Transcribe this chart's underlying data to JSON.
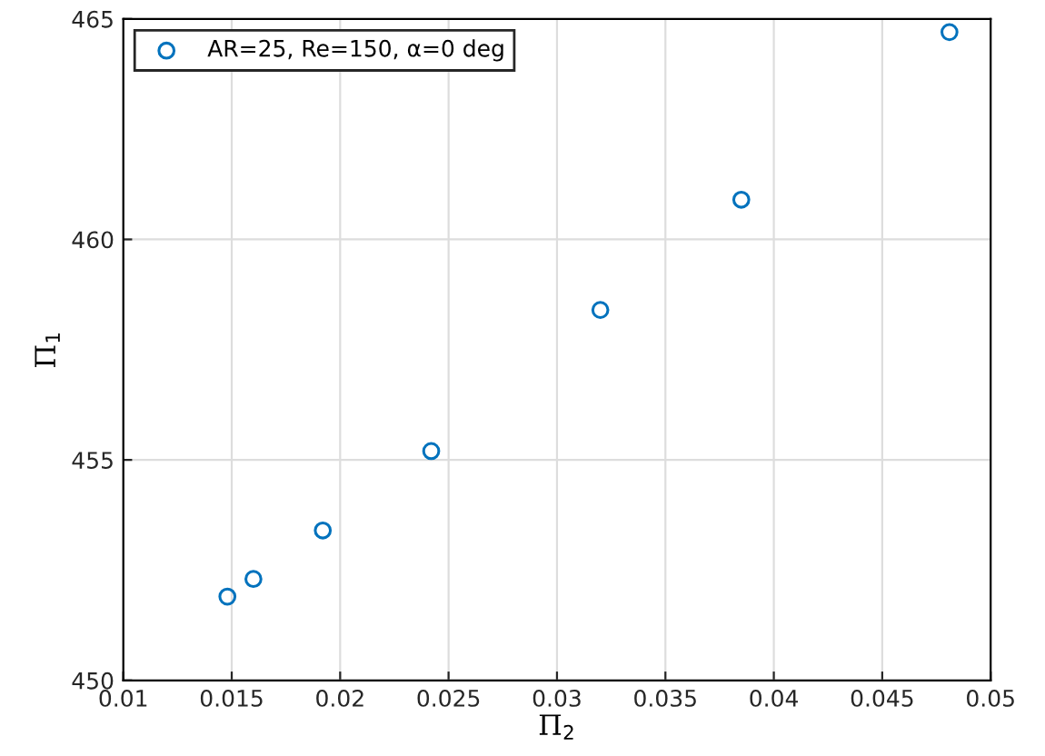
{
  "chart_data": {
    "type": "scatter",
    "xlabel": "Π$_{2}$",
    "ylabel": "Π$_{1}$",
    "x": [
      0.0148,
      0.016,
      0.0192,
      0.0242,
      0.032,
      0.0385,
      0.0481
    ],
    "series": [
      {
        "name": "AR=25, Re=150, α=0 deg",
        "color": "#0072bd",
        "values": [
          451.9,
          452.3,
          453.4,
          455.2,
          458.4,
          460.9,
          464.7
        ]
      }
    ],
    "xlim": [
      0.01,
      0.05
    ],
    "xticks": [
      0.01,
      0.015,
      0.02,
      0.025,
      0.03,
      0.035,
      0.04,
      0.045,
      0.05
    ],
    "ylim": [
      450,
      465
    ],
    "yticks": [
      450,
      455,
      460,
      465
    ],
    "grid": true,
    "legend": "top left",
    "marker": "circle"
  }
}
